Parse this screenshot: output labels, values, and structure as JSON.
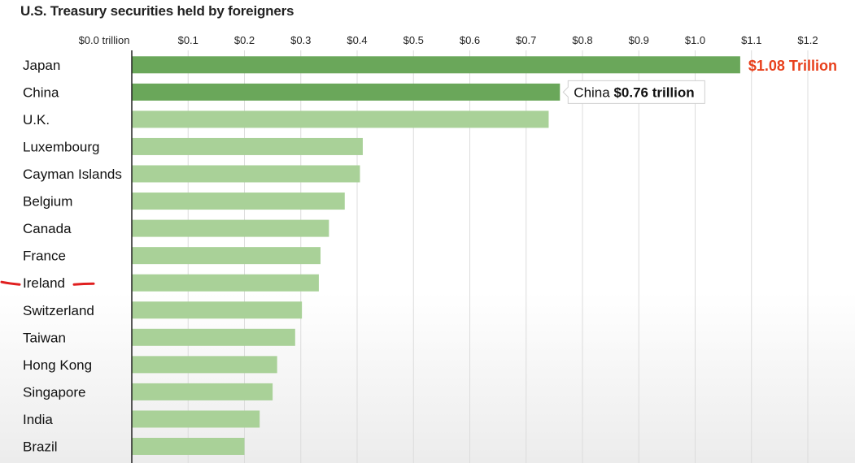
{
  "title": "U.S. Treasury securities held by foreigners",
  "colors": {
    "highlight_bar": "#6aa75a",
    "normal_bar": "#a9d198",
    "highlight_label": "#e8401c",
    "annotation_mark": "#e01f1f"
  },
  "chart_data": {
    "type": "bar",
    "orientation": "horizontal",
    "title": "U.S. Treasury securities held by foreigners",
    "unit": "trillion",
    "xlim": [
      0,
      1.2
    ],
    "ticks": [
      {
        "value": 0.0,
        "label": "$0.0 trillion"
      },
      {
        "value": 0.1,
        "label": "$0.1"
      },
      {
        "value": 0.2,
        "label": "$0.2"
      },
      {
        "value": 0.3,
        "label": "$0.3"
      },
      {
        "value": 0.4,
        "label": "$0.4"
      },
      {
        "value": 0.5,
        "label": "$0.5"
      },
      {
        "value": 0.6,
        "label": "$0.6"
      },
      {
        "value": 0.7,
        "label": "$0.7"
      },
      {
        "value": 0.8,
        "label": "$0.8"
      },
      {
        "value": 0.9,
        "label": "$0.9"
      },
      {
        "value": 1.0,
        "label": "$1.0"
      },
      {
        "value": 1.1,
        "label": "$1.1"
      },
      {
        "value": 1.2,
        "label": "$1.2"
      }
    ],
    "categories": [
      "Japan",
      "China",
      "U.K.",
      "Luxembourg",
      "Cayman Islands",
      "Belgium",
      "Canada",
      "France",
      "Ireland",
      "Switzerland",
      "Taiwan",
      "Hong Kong",
      "Singapore",
      "India",
      "Brazil"
    ],
    "values": [
      1.08,
      0.76,
      0.74,
      0.41,
      0.405,
      0.378,
      0.35,
      0.335,
      0.332,
      0.302,
      0.29,
      0.258,
      0.25,
      0.227,
      0.2
    ],
    "highlighted": [
      "Japan",
      "China"
    ],
    "grid": true,
    "annotations": [
      {
        "category": "Japan",
        "text": "$1.08 Trillion",
        "style": "red-bold"
      },
      {
        "category": "China",
        "prefix": "China ",
        "value_text": "$0.76 trillion",
        "style": "callout-box"
      }
    ],
    "hand_marks": [
      {
        "category": "Ireland",
        "type": "red-dashes"
      }
    ]
  }
}
